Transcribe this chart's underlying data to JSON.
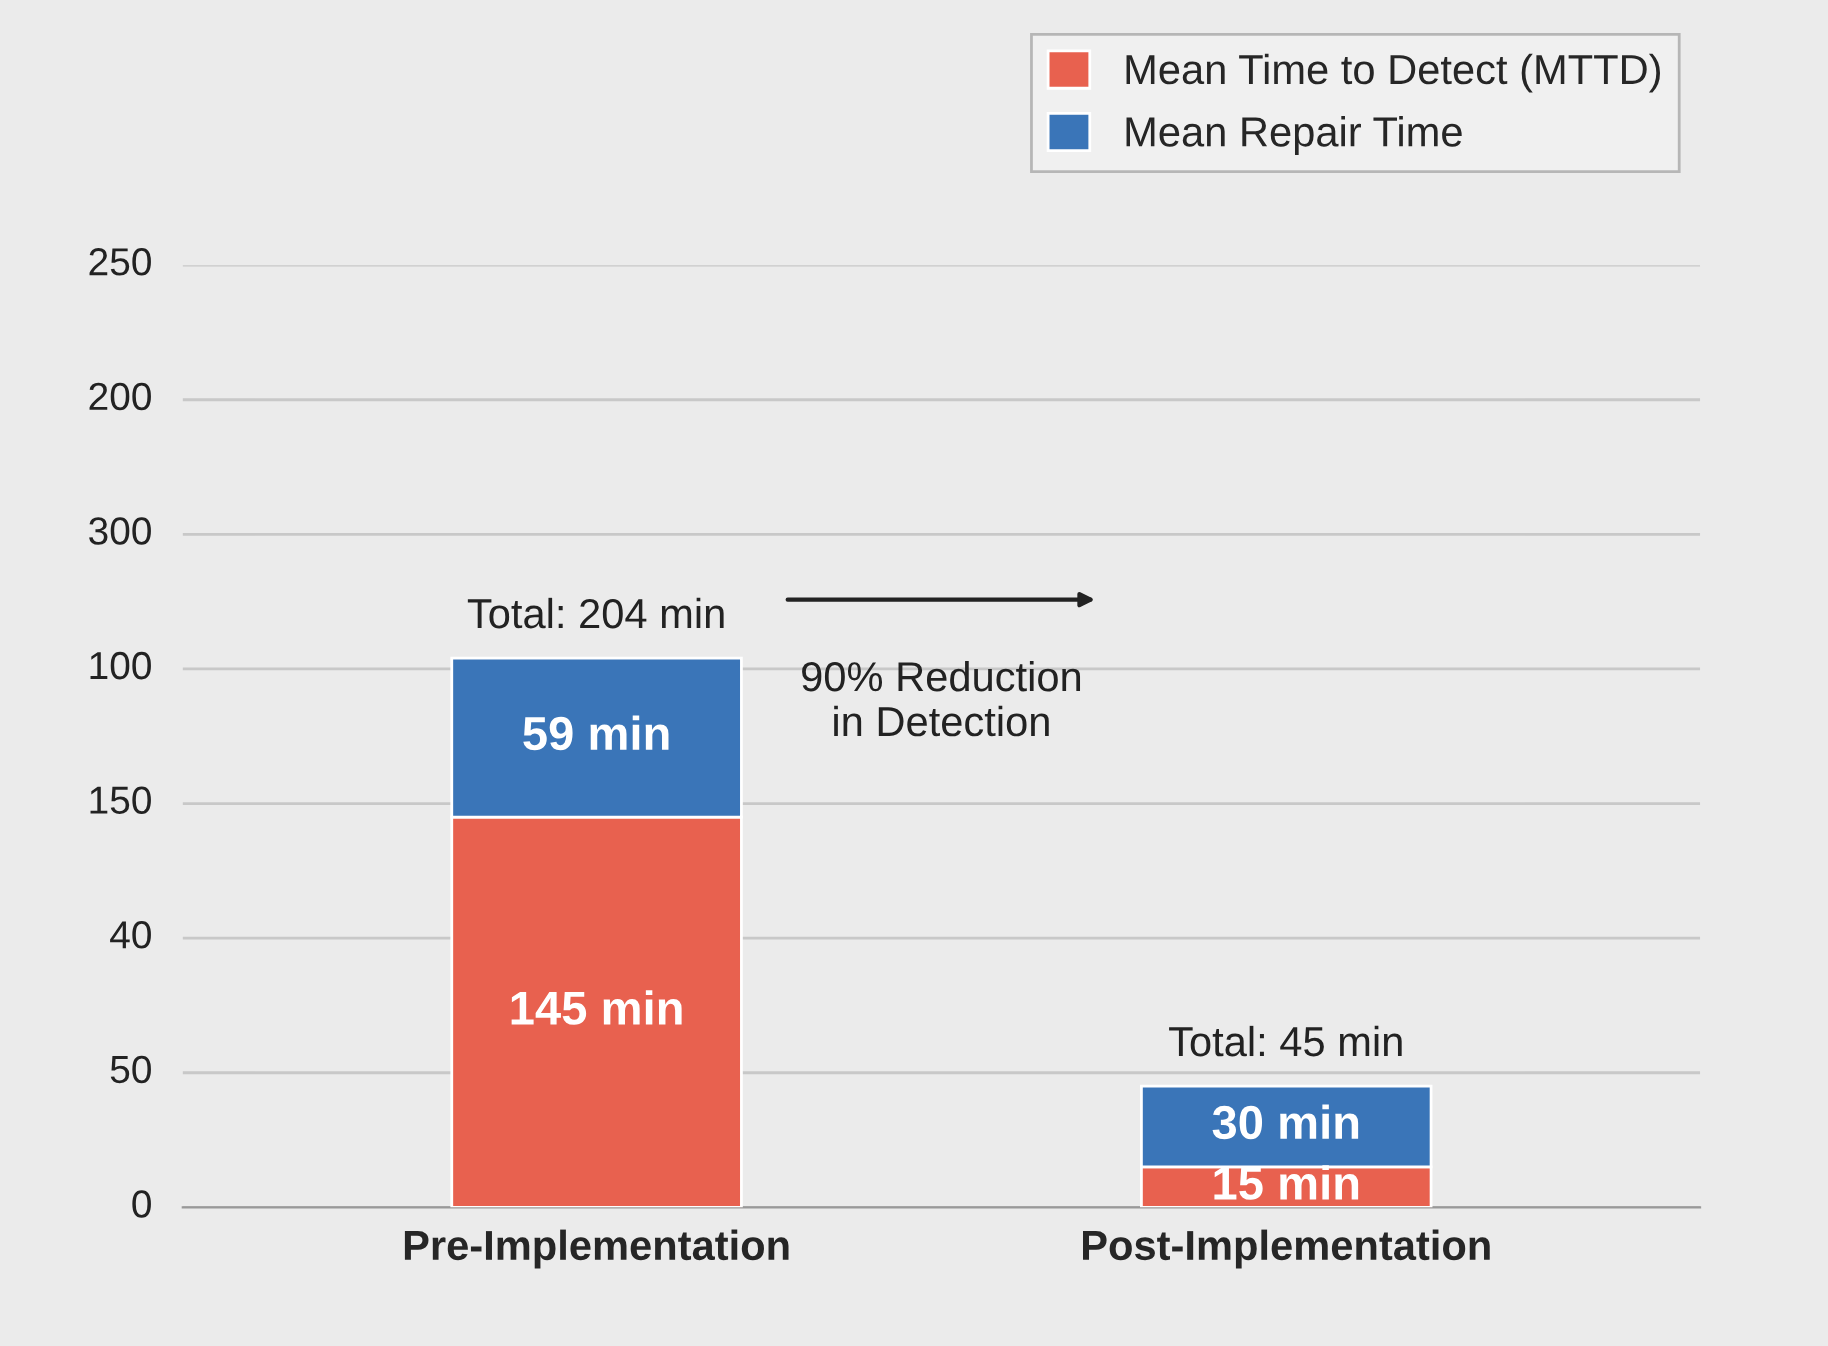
{
  "chart_data": {
    "type": "bar",
    "stacked": true,
    "categories": [
      "Pre-Implementation",
      "Post-Implementation"
    ],
    "series": [
      {
        "name": "Mean Time to Detect (MTTD)",
        "color": "#e8614f",
        "values": [
          145,
          15
        ],
        "value_labels": [
          "145 min",
          "15 min"
        ]
      },
      {
        "name": "Mean Repair Time",
        "color": "#3a75b8",
        "values": [
          59,
          30
        ],
        "value_labels": [
          "59 min",
          "30 min"
        ]
      }
    ],
    "totals": [
      "Total: 204 min",
      "Total: 45 min"
    ],
    "annotations": [
      "90% Reduction\nin Detection",
      "0",
      "50",
      "40",
      "150",
      "100",
      "300",
      "200",
      "250"
    ],
    "ylim": [
      0,
      350
    ],
    "yticks": [
      {
        "value": 0,
        "label": null
      },
      {
        "value": 50,
        "label": null
      },
      {
        "value": 100,
        "label": null
      },
      {
        "value": 150,
        "label": null
      },
      {
        "value": 200,
        "label": null
      },
      {
        "value": 250,
        "label": null
      },
      {
        "value": 300,
        "label": null
      },
      {
        "value": 350,
        "label": null
      }
    ],
    "grid": "y",
    "legend": "top right"
  }
}
